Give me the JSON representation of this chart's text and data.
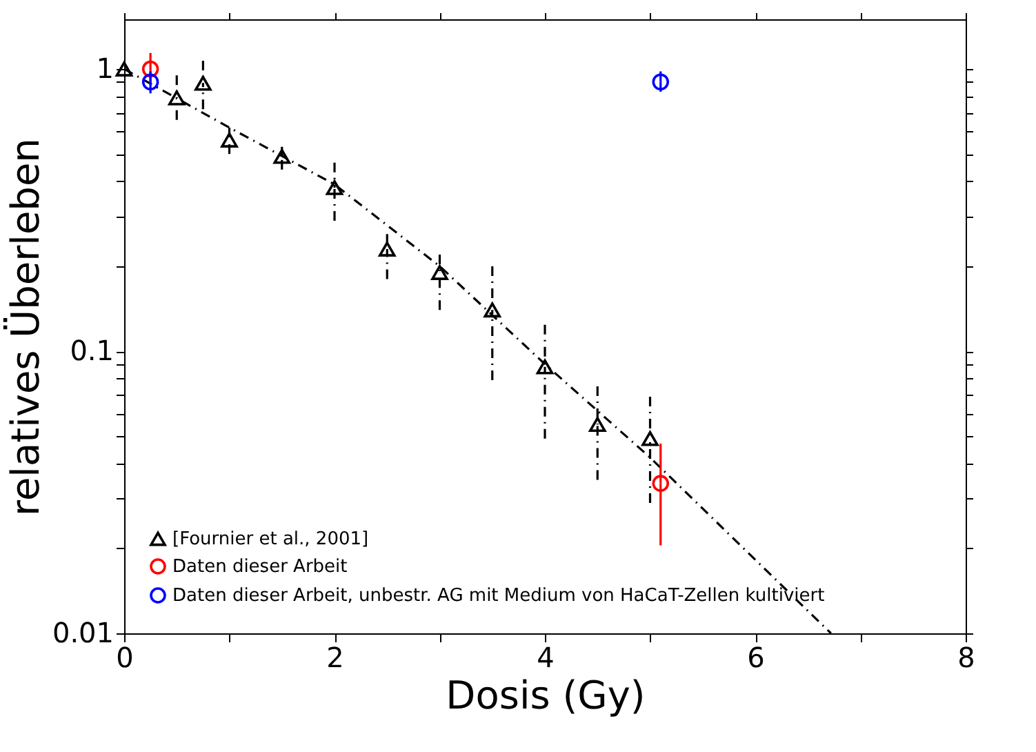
{
  "chart_data": {
    "type": "scatter",
    "xlabel": "Dosis (Gy)",
    "ylabel": "relatives Überleben",
    "log": "y",
    "grid": false,
    "legend": "bottom left",
    "xlim": [
      0,
      8
    ],
    "xticks": [
      0,
      {
        "value": 1,
        "label": null
      },
      2,
      {
        "value": 3,
        "label": null
      },
      4,
      {
        "value": 5,
        "label": null
      },
      6,
      {
        "value": 7,
        "label": null
      },
      8
    ],
    "ylim": [
      0.01,
      1.5
    ],
    "yticks": [
      0.01,
      {
        "value": 0.02,
        "label": null
      },
      {
        "value": 0.03,
        "label": null
      },
      {
        "value": 0.04,
        "label": null
      },
      {
        "value": 0.05,
        "label": null
      },
      {
        "value": 0.06,
        "label": null
      },
      {
        "value": 0.07,
        "label": null
      },
      {
        "value": 0.08,
        "label": null
      },
      {
        "value": 0.09,
        "label": null
      },
      0.1,
      {
        "value": 0.2,
        "label": null
      },
      {
        "value": 0.3,
        "label": null
      },
      {
        "value": 0.4,
        "label": null
      },
      {
        "value": 0.5,
        "label": null
      },
      {
        "value": 0.6,
        "label": null
      },
      {
        "value": 0.7,
        "label": null
      },
      {
        "value": 0.8,
        "label": null
      },
      {
        "value": 0.9,
        "label": null
      },
      1
    ],
    "series": [
      {
        "name": "[Fournier et al., 2001]",
        "color": "#000000",
        "marker": "triangle",
        "line_style": "dashed",
        "x": [
          0,
          0.5,
          0.75,
          1,
          1.5,
          2,
          2.5,
          3,
          3.5,
          4,
          4.5,
          5
        ],
        "values": [
          1.0,
          0.79,
          0.89,
          0.56,
          0.49,
          0.38,
          0.23,
          0.19,
          0.14,
          0.088,
          0.055,
          0.049
        ],
        "errors": [
          null,
          [
            0.66,
            0.95
          ],
          [
            0.72,
            1.07
          ],
          [
            0.5,
            0.62
          ],
          [
            0.44,
            0.53
          ],
          [
            0.29,
            0.466
          ],
          [
            0.18,
            0.26
          ],
          [
            0.14,
            0.22
          ],
          [
            0.079,
            0.2
          ],
          [
            0.049,
            0.124
          ],
          [
            0.035,
            0.075
          ],
          [
            0.029,
            0.069
          ]
        ]
      },
      {
        "type": "line",
        "color": "#000000",
        "line_style": "dashed",
        "x": [
          0,
          1,
          2,
          3,
          4,
          5,
          6.72
        ],
        "values": [
          1.0,
          0.62,
          0.39,
          0.2,
          0.09,
          0.042,
          0.01
        ]
      },
      {
        "name": "Daten dieser Arbeit",
        "color": "#ff0000",
        "marker": "circle",
        "line_style": "solid",
        "x": [
          0.25,
          5.1
        ],
        "values": [
          1.0,
          0.034
        ],
        "errors": [
          [
            0.88,
            1.14
          ],
          [
            0.0205,
            0.047
          ]
        ]
      },
      {
        "name": "Daten dieser Arbeit, unbestr. AG mit Medium von HaCaT-Zellen kultiviert",
        "color": "#0000ff",
        "marker": "circle",
        "line_style": "solid",
        "x": [
          0.25,
          5.1
        ],
        "values": [
          0.9,
          0.9
        ],
        "errors": [
          [
            0.82,
            0.98
          ],
          [
            0.83,
            0.98
          ]
        ]
      }
    ]
  }
}
